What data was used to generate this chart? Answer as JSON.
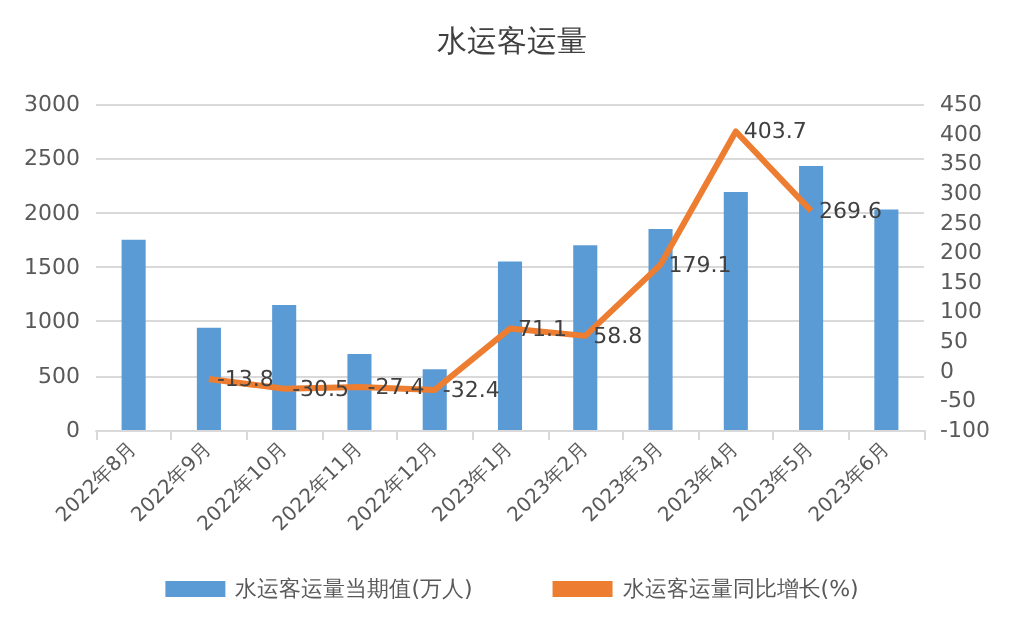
{
  "chart_data": {
    "type": "bar",
    "title": "水运客运量",
    "categories": [
      "2022年8月",
      "2022年9月",
      "2022年10月",
      "2022年11月",
      "2022年12月",
      "2023年1月",
      "2023年2月",
      "2023年3月",
      "2023年4月",
      "2023年5月",
      "2023年6月"
    ],
    "series": [
      {
        "name": "水运客运量当期值(万人)",
        "color": "#5b9bd5",
        "values": [
          1750,
          940,
          1150,
          700,
          560,
          1550,
          1700,
          1850,
          2190,
          2430,
          2030
        ]
      },
      {
        "name": "水运客运量同比增长(%)",
        "type": "line",
        "axis": "y2",
        "color": "#ed7d31",
        "values": [
          null,
          -13.8,
          -30.5,
          -27.4,
          -32.4,
          71.1,
          58.8,
          179.1,
          403.7,
          269.6,
          null
        ],
        "data_labels": true
      }
    ],
    "ylim": [
      0,
      3000
    ],
    "yticks": [
      0,
      500,
      1000,
      1500,
      2000,
      2500,
      3000
    ],
    "y2lim": [
      -100,
      450
    ],
    "y2ticks": [
      -100,
      -50,
      0,
      50,
      100,
      150,
      200,
      250,
      300,
      350,
      400,
      450
    ],
    "grid": "y",
    "legend": "bottom",
    "marker": "none"
  }
}
